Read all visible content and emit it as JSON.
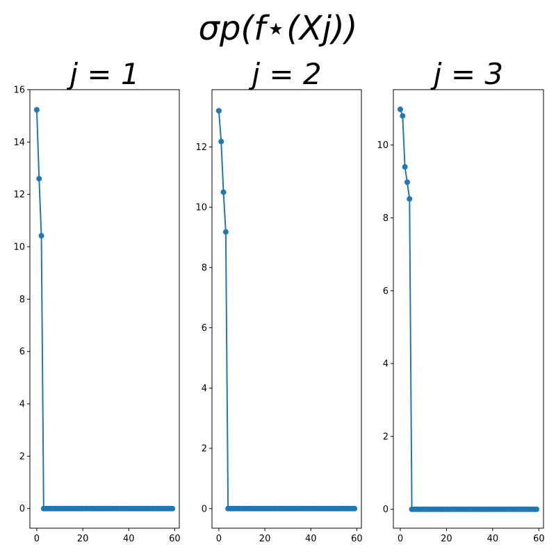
{
  "chart_data": {
    "type": "line",
    "title": "σp(f⋆(Xj))",
    "subplots": [
      {
        "title": "j = 1",
        "xlim": [
          -3,
          62
        ],
        "ylim": [
          -0.75,
          16
        ],
        "xticks": [
          0,
          20,
          40,
          60
        ],
        "yticks": [
          0,
          2,
          4,
          6,
          8,
          10,
          12,
          14,
          16
        ],
        "nonzero_values": [
          15.23,
          12.6,
          10.42
        ],
        "n_points": 60,
        "color": "#1f77b4"
      },
      {
        "title": "j = 2",
        "xlim": [
          -3,
          62
        ],
        "ylim": [
          -0.65,
          13.9
        ],
        "xticks": [
          0,
          20,
          40,
          60
        ],
        "yticks": [
          0,
          2,
          4,
          6,
          8,
          10,
          12
        ],
        "nonzero_values": [
          13.2,
          12.18,
          10.5,
          9.18
        ],
        "n_points": 60,
        "color": "#1f77b4"
      },
      {
        "title": "j = 3",
        "xlim": [
          -3,
          62
        ],
        "ylim": [
          -0.52,
          11.52
        ],
        "xticks": [
          0,
          20,
          40,
          60
        ],
        "yticks": [
          0,
          2,
          4,
          6,
          8,
          10
        ],
        "nonzero_values": [
          10.98,
          10.8,
          9.4,
          8.98,
          8.52
        ],
        "n_points": 60,
        "color": "#1f77b4"
      }
    ]
  }
}
